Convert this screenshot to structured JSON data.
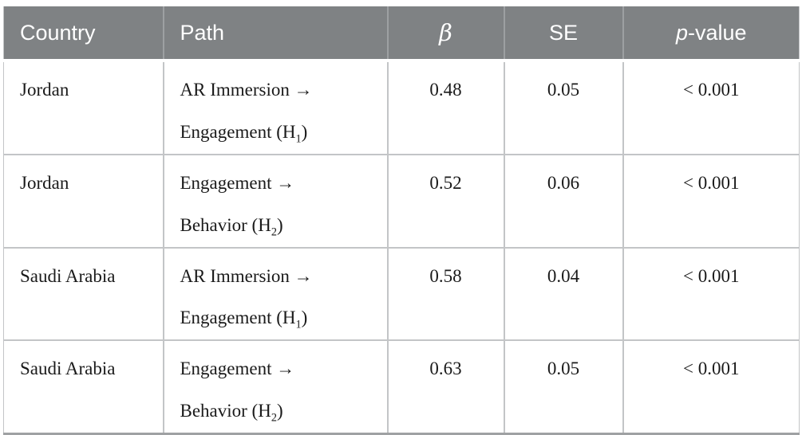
{
  "table": {
    "headers": {
      "country": "Country",
      "path": "Path",
      "beta": "β",
      "se": "SE",
      "p_prefix": "p",
      "p_suffix": "-value"
    },
    "rows": [
      {
        "country": "Jordan",
        "path_line1": "AR Immersion →",
        "path_line2_prefix": "Engagement (H",
        "path_sub": "1",
        "path_line2_suffix": ")",
        "beta": "0.48",
        "se": "0.05",
        "p": "< 0.001"
      },
      {
        "country": "Jordan",
        "path_line1": "Engagement →",
        "path_line2_prefix": "Behavior (H",
        "path_sub": "2",
        "path_line2_suffix": ")",
        "beta": "0.52",
        "se": "0.06",
        "p": "< 0.001"
      },
      {
        "country": "Saudi Arabia",
        "path_line1": "AR Immersion →",
        "path_line2_prefix": "Engagement (H",
        "path_sub": "1",
        "path_line2_suffix": ")",
        "beta": "0.58",
        "se": "0.04",
        "p": "< 0.001"
      },
      {
        "country": "Saudi Arabia",
        "path_line1": "Engagement →",
        "path_line2_prefix": "Behavior (H",
        "path_sub": "2",
        "path_line2_suffix": ")",
        "beta": "0.63",
        "se": "0.05",
        "p": "< 0.001"
      }
    ],
    "colors": {
      "header_bg": "#7f8284",
      "header_text": "#ffffff",
      "header_divider": "#9da0a2",
      "grid_line": "#c3c5c7",
      "bottom_border": "#9fa1a3",
      "body_text": "#1a1a1a"
    }
  }
}
